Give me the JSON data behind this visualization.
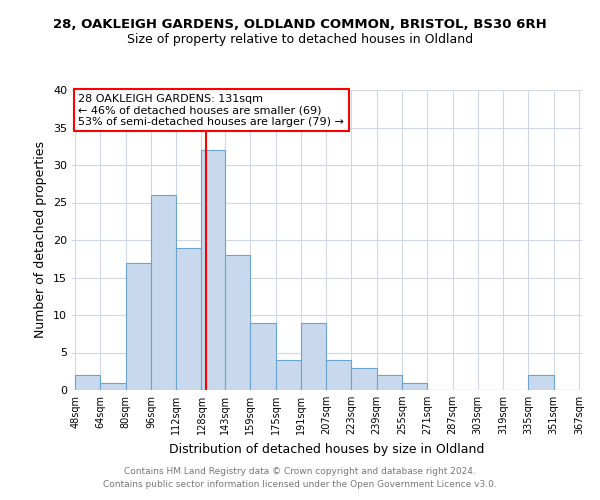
{
  "title": "28, OAKLEIGH GARDENS, OLDLAND COMMON, BRISTOL, BS30 6RH",
  "subtitle": "Size of property relative to detached houses in Oldland",
  "xlabel": "Distribution of detached houses by size in Oldland",
  "ylabel": "Number of detached properties",
  "bar_color": "#c8d9ee",
  "bar_edge_color": "#6ba3d0",
  "vline_x": 131,
  "vline_color": "red",
  "annotation_title": "28 OAKLEIGH GARDENS: 131sqm",
  "annotation_line2": "← 46% of detached houses are smaller (69)",
  "annotation_line3": "53% of semi-detached houses are larger (79) →",
  "annotation_box_edge": "red",
  "bins": [
    48,
    64,
    80,
    96,
    112,
    128,
    143,
    159,
    175,
    191,
    207,
    223,
    239,
    255,
    271,
    287,
    303,
    319,
    335,
    351,
    367
  ],
  "counts": [
    2,
    1,
    17,
    26,
    19,
    32,
    18,
    9,
    4,
    9,
    4,
    3,
    2,
    1,
    0,
    0,
    0,
    0,
    2,
    0
  ],
  "ylim": [
    0,
    40
  ],
  "yticks": [
    0,
    5,
    10,
    15,
    20,
    25,
    30,
    35,
    40
  ],
  "footer1": "Contains HM Land Registry data © Crown copyright and database right 2024.",
  "footer2": "Contains public sector information licensed under the Open Government Licence v3.0.",
  "bg_color": "#ffffff",
  "grid_color": "#d0d8e8"
}
